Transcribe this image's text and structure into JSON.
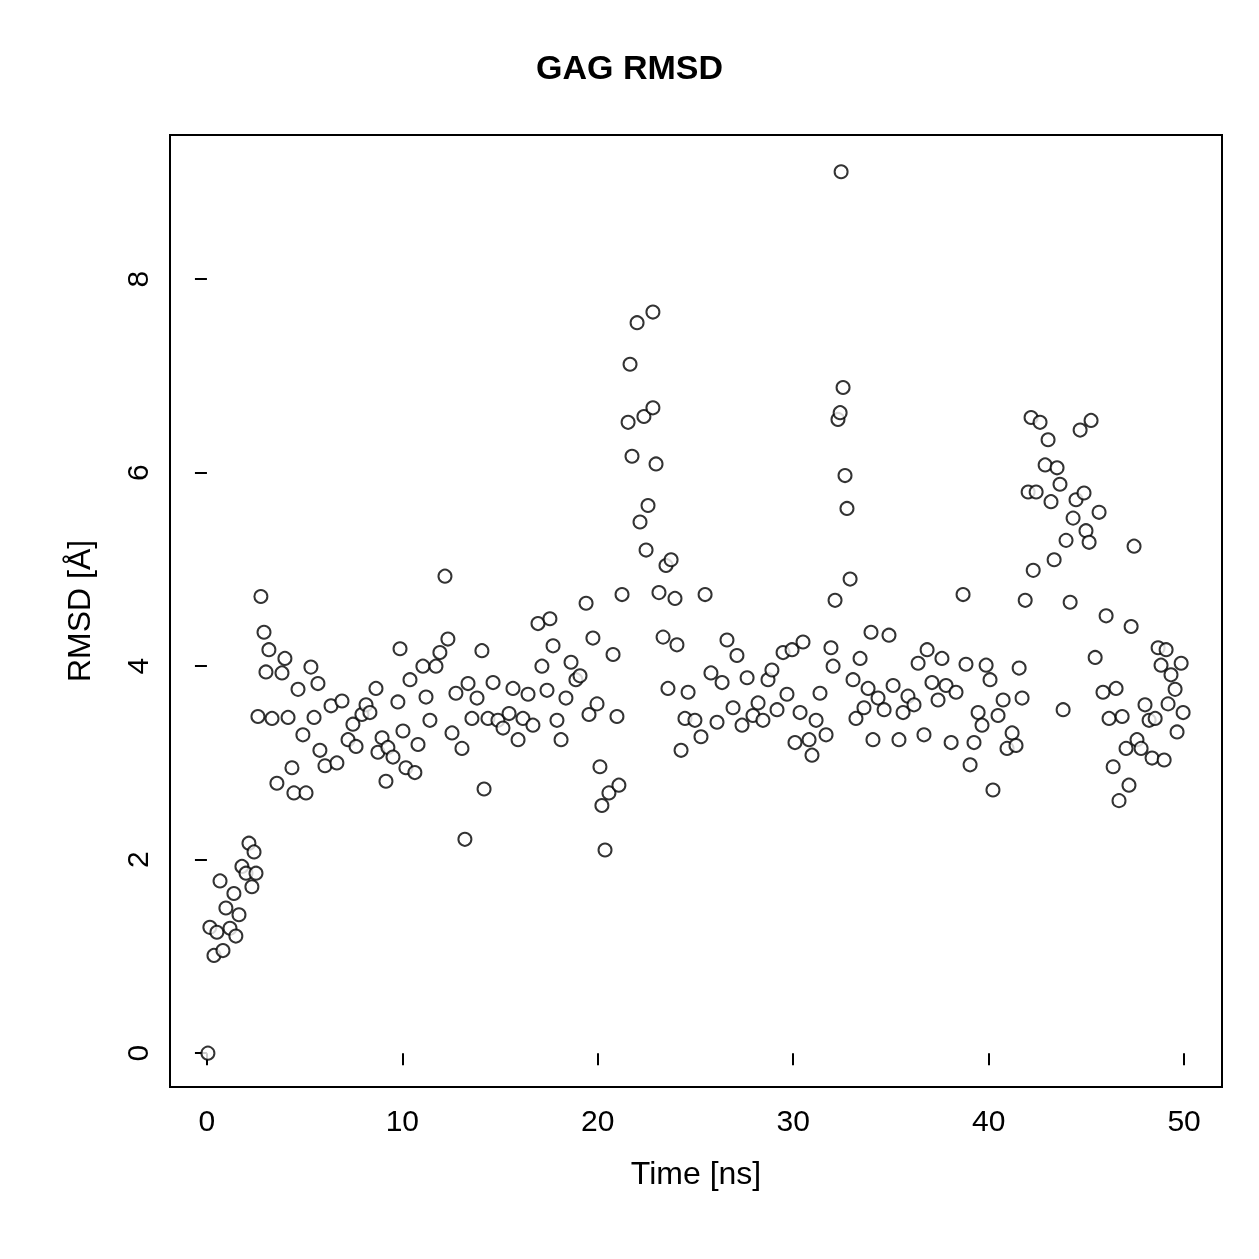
{
  "chart_data": {
    "type": "scatter",
    "title": "GAG RMSD",
    "xlabel": "Time [ns]",
    "ylabel": "RMSD [Å]",
    "xlim": [
      -1.89,
      51.94
    ],
    "ylim": [
      -0.35,
      9.49
    ],
    "xticks": [
      0,
      10,
      20,
      30,
      40,
      50
    ],
    "yticks": [
      0,
      2,
      4,
      6,
      8
    ],
    "grid": false,
    "marker": "circle",
    "series": [
      {
        "color": "#000000",
        "x": [
          0.05,
          0.15,
          0.36,
          0.51,
          0.67,
          0.82,
          0.97,
          1.18,
          1.38,
          1.48,
          1.64,
          1.79,
          2.0,
          2.15,
          2.3,
          2.41,
          2.51,
          2.61,
          2.76,
          2.92,
          3.02,
          3.17,
          3.33,
          3.58,
          3.84,
          3.99,
          4.15,
          4.35,
          4.45,
          4.66,
          4.91,
          5.07,
          5.32,
          5.48,
          5.68,
          5.78,
          6.04,
          6.35,
          6.65,
          6.91,
          7.22,
          7.47,
          7.63,
          7.93,
          8.14,
          8.34,
          8.65,
          8.75,
          8.96,
          9.16,
          9.26,
          9.52,
          9.77,
          9.88,
          10.03,
          10.18,
          10.39,
          10.64,
          10.8,
          11.05,
          11.21,
          11.41,
          11.72,
          11.92,
          12.18,
          12.33,
          12.54,
          12.74,
          13.05,
          13.2,
          13.36,
          13.56,
          13.82,
          14.07,
          14.18,
          14.38,
          14.64,
          14.89,
          15.15,
          15.46,
          15.66,
          15.92,
          16.17,
          16.43,
          16.68,
          16.94,
          17.14,
          17.4,
          17.55,
          17.71,
          17.91,
          18.12,
          18.37,
          18.63,
          18.88,
          19.09,
          19.4,
          19.55,
          19.75,
          19.96,
          20.11,
          20.21,
          20.37,
          20.57,
          20.78,
          20.98,
          21.08,
          21.24,
          21.55,
          21.65,
          21.75,
          22.01,
          22.16,
          22.36,
          22.47,
          22.57,
          22.82,
          22.82,
          22.98,
          23.13,
          23.34,
          23.49,
          23.59,
          23.75,
          23.95,
          24.05,
          24.26,
          24.46,
          24.62,
          24.97,
          25.28,
          25.49,
          25.79,
          26.1,
          26.36,
          26.61,
          26.92,
          27.12,
          27.38,
          27.64,
          27.94,
          28.2,
          28.45,
          28.71,
          28.91,
          29.17,
          29.48,
          29.68,
          29.94,
          30.09,
          30.35,
          30.5,
          30.81,
          30.96,
          31.17,
          31.37,
          31.68,
          31.93,
          32.04,
          32.14,
          32.29,
          32.4,
          32.45,
          32.55,
          32.65,
          32.75,
          32.91,
          33.06,
          33.21,
          33.42,
          33.62,
          33.83,
          33.98,
          34.08,
          34.34,
          34.65,
          34.9,
          35.11,
          35.41,
          35.62,
          35.87,
          36.18,
          36.39,
          36.69,
          36.85,
          37.1,
          37.41,
          37.61,
          37.82,
          38.08,
          38.33,
          38.69,
          38.84,
          39.05,
          39.25,
          39.46,
          39.66,
          39.87,
          40.07,
          40.22,
          40.48,
          40.74,
          40.94,
          41.2,
          41.4,
          41.56,
          41.71,
          41.87,
          42.02,
          42.17,
          42.28,
          42.43,
          42.63,
          42.89,
          43.04,
          43.19,
          43.35,
          43.5,
          43.65,
          43.81,
          43.96,
          44.17,
          44.32,
          44.47,
          44.68,
          44.88,
          44.98,
          45.14,
          45.24,
          45.45,
          45.65,
          45.85,
          46.01,
          46.16,
          46.37,
          46.52,
          46.67,
          46.83,
          47.03,
          47.18,
          47.29,
          47.44,
          47.59,
          47.8,
          48.0,
          48.21,
          48.36,
          48.52,
          48.67,
          48.82,
          48.98,
          49.08,
          49.18,
          49.33,
          49.54,
          49.64,
          49.85,
          49.95
        ],
        "values": [
          0,
          1.3,
          1.01,
          1.25,
          1.78,
          1.06,
          1.5,
          1.29,
          1.65,
          1.21,
          1.43,
          1.93,
          1.86,
          2.17,
          1.72,
          2.08,
          1.86,
          3.48,
          4.72,
          4.35,
          3.94,
          4.17,
          3.46,
          2.79,
          3.93,
          4.08,
          3.47,
          2.95,
          2.69,
          3.76,
          3.29,
          2.69,
          3.99,
          3.47,
          3.82,
          3.13,
          2.97,
          3.59,
          3.0,
          3.64,
          3.24,
          3.4,
          3.17,
          3.5,
          3.6,
          3.52,
          3.77,
          3.11,
          3.26,
          2.81,
          3.16,
          3.06,
          3.63,
          4.18,
          3.33,
          2.95,
          3.86,
          2.9,
          3.19,
          4.0,
          3.68,
          3.44,
          4.0,
          4.14,
          4.93,
          4.28,
          3.31,
          3.72,
          3.15,
          2.21,
          3.82,
          3.46,
          3.67,
          4.16,
          2.73,
          3.46,
          3.83,
          3.44,
          3.36,
          3.51,
          3.77,
          3.24,
          3.46,
          3.71,
          3.39,
          4.44,
          4.0,
          3.75,
          4.49,
          4.21,
          3.44,
          3.24,
          3.67,
          4.04,
          3.86,
          3.9,
          4.65,
          3.5,
          4.29,
          3.61,
          2.96,
          2.56,
          2.1,
          2.69,
          4.12,
          3.48,
          2.77,
          4.74,
          6.52,
          7.12,
          6.17,
          7.55,
          5.49,
          6.58,
          5.2,
          5.66,
          7.66,
          6.67,
          6.09,
          4.76,
          4.3,
          5.04,
          3.77,
          5.1,
          4.7,
          4.22,
          3.13,
          3.46,
          3.73,
          3.44,
          3.27,
          4.74,
          3.93,
          3.42,
          3.83,
          4.27,
          3.57,
          4.11,
          3.39,
          3.88,
          3.49,
          3.62,
          3.44,
          3.86,
          3.96,
          3.55,
          4.14,
          3.71,
          4.17,
          3.21,
          3.52,
          4.25,
          3.24,
          3.08,
          3.44,
          3.72,
          3.29,
          4.19,
          4.0,
          4.68,
          6.55,
          6.62,
          9.11,
          6.88,
          5.97,
          5.63,
          4.9,
          3.86,
          3.46,
          4.08,
          3.57,
          3.77,
          4.35,
          3.24,
          3.67,
          3.55,
          4.32,
          3.8,
          3.24,
          3.52,
          3.69,
          3.6,
          4.03,
          3.29,
          4.17,
          3.83,
          3.65,
          4.08,
          3.8,
          3.21,
          3.73,
          4.74,
          4.02,
          2.98,
          3.21,
          3.52,
          3.39,
          4.01,
          3.86,
          2.72,
          3.49,
          3.65,
          3.15,
          3.31,
          3.18,
          3.98,
          3.67,
          4.68,
          5.8,
          6.57,
          4.99,
          5.8,
          6.52,
          6.08,
          6.34,
          5.7,
          5.1,
          6.05,
          5.88,
          3.55,
          5.3,
          4.66,
          5.53,
          5.72,
          6.44,
          5.79,
          5.4,
          5.28,
          6.54,
          4.09,
          5.59,
          3.73,
          4.52,
          3.46,
          2.96,
          3.77,
          2.61,
          3.48,
          3.15,
          2.77,
          4.41,
          5.24,
          3.24,
          3.15,
          3.6,
          3.44,
          3.05,
          3.46,
          4.19,
          4.01,
          3.03,
          4.17,
          3.61,
          3.91,
          3.76,
          3.32,
          4.03,
          3.52
        ]
      }
    ]
  }
}
